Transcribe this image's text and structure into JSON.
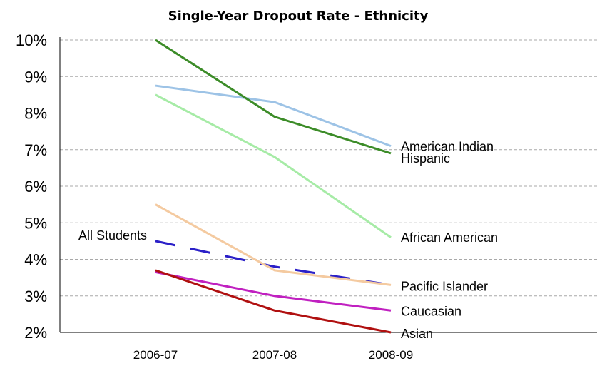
{
  "chart_data": {
    "type": "line",
    "title": "Single-Year Dropout Rate - Ethnicity",
    "xlabel": "",
    "ylabel": "",
    "categories": [
      "2006-07",
      "2007-08",
      "2008-09"
    ],
    "ylim": [
      2,
      10
    ],
    "y_ticks": [
      "2%",
      "3%",
      "4%",
      "5%",
      "6%",
      "7%",
      "8%",
      "9%",
      "10%"
    ],
    "grid": true,
    "legend": "none (series labeled directly at line ends)",
    "series": [
      {
        "name": "American Indian",
        "values": [
          8.75,
          8.3,
          7.1
        ],
        "color": "#9dc3e6",
        "dash": false
      },
      {
        "name": "Hispanic",
        "values": [
          10.0,
          7.9,
          6.9
        ],
        "color": "#3c8c28",
        "dash": false
      },
      {
        "name": "African American",
        "values": [
          8.5,
          6.8,
          4.6
        ],
        "color": "#a6eba6",
        "dash": false
      },
      {
        "name": "All Students",
        "values": [
          4.5,
          3.8,
          3.3
        ],
        "color": "#2b20c8",
        "dash": true
      },
      {
        "name": "Pacific Islander",
        "values": [
          5.5,
          3.7,
          3.3
        ],
        "color": "#f4caa0",
        "dash": false
      },
      {
        "name": "Caucasian",
        "values": [
          3.65,
          3.0,
          2.6
        ],
        "color": "#c020c0",
        "dash": false
      },
      {
        "name": "Asian",
        "values": [
          3.7,
          2.6,
          2.0
        ],
        "color": "#b01010",
        "dash": false
      }
    ]
  }
}
